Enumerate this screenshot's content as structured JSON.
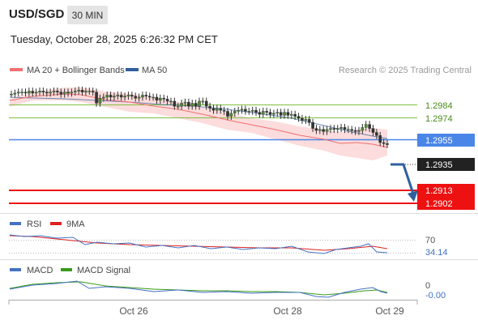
{
  "header": {
    "symbol": "USD/SGD",
    "timeframe": "30 MIN",
    "datetime": "Tuesday, October 28, 2025 6:26:32 PM CET"
  },
  "legend": {
    "ma20_label": "MA 20 + Bollinger Bands",
    "ma50_label": "MA 50",
    "copyright": "Research © 2025 Trading Central"
  },
  "colors": {
    "ma20": "#f07070",
    "ma50": "#2f5f9e",
    "bollinger_fill": "#fcdcdc",
    "resistance": "#7fbf40",
    "pivot": "#4a86e8",
    "support": "#ee1111",
    "current": "#222222",
    "candle": "#4f8f2f",
    "rsi": "#4472c4",
    "rsi_ma": "#dd2222",
    "macd": "#4472c4",
    "macd_signal": "#3a9a1a"
  },
  "price_levels": {
    "r2": "1.2984",
    "r1": "1.2974",
    "pivot": "1.2955",
    "current": "1.2935",
    "s1": "1.2913",
    "s2": "1.2902"
  },
  "rsi_legend": {
    "rsi": "RSI",
    "ma": "9MA"
  },
  "rsi_values": {
    "level": "70",
    "current": "34.14"
  },
  "macd_legend": {
    "macd": "MACD",
    "signal": "MACD Signal"
  },
  "macd_values": {
    "zero": "0",
    "current": "-0.00"
  },
  "x_axis": {
    "labels": [
      "Oct 26",
      "Oct 28",
      "Oct 29"
    ]
  },
  "chart_data": {
    "type": "candlestick",
    "instrument": "USD/SGD",
    "interval": "30 MIN",
    "x_categories": [
      "Oct 26",
      "Oct 28",
      "Oct 29"
    ],
    "series_close": [
      1.2997,
      1.2998,
      1.2999,
      1.2999,
      1.2998,
      1.3,
      1.2998,
      1.2999,
      1.3,
      1.2999,
      1.2998,
      1.2999,
      1.3,
      1.2999,
      1.2997,
      1.2999,
      1.2998,
      1.2999,
      1.3,
      1.3001,
      1.2999,
      1.3,
      1.3,
      1.2999,
      1.2988,
      1.2993,
      1.2994,
      1.2996,
      1.2994,
      1.2995,
      1.2996,
      1.2994,
      1.2995,
      1.2996,
      1.2995,
      1.2993,
      1.2994,
      1.2996,
      1.2995,
      1.2994,
      1.2994,
      1.2991,
      1.2993,
      1.2992,
      1.299,
      1.299,
      1.2985,
      1.2985,
      1.2988,
      1.2989,
      1.2985,
      1.2988,
      1.2985,
      1.299,
      1.299,
      1.2985,
      1.2983,
      1.2981,
      1.2983,
      1.2981,
      1.298,
      1.2975,
      1.2978,
      1.298,
      1.2981,
      1.2982,
      1.298,
      1.298,
      1.2981,
      1.2979,
      1.2977,
      1.298,
      1.2979,
      1.2977,
      1.2978,
      1.2979,
      1.2976,
      1.2979,
      1.2976,
      1.2977,
      1.2975,
      1.2973,
      1.2971,
      1.2972,
      1.2969,
      1.2963,
      1.2961,
      1.2962,
      1.296,
      1.2962,
      1.2963,
      1.2962,
      1.2963,
      1.2964,
      1.2962,
      1.2962,
      1.2961,
      1.296,
      1.2961,
      1.2964,
      1.2967,
      1.2963,
      1.2959,
      1.2956,
      1.2949,
      1.2948,
      1.2947
    ],
    "ma20_approx": [
      1.2997,
      1.3002,
      1.2997,
      1.2994,
      1.2991,
      1.2989,
      1.2985,
      1.2981,
      1.2978,
      1.2973,
      1.2966,
      1.2961,
      1.2955
    ],
    "ma50_approx": [
      1.2999,
      1.2998,
      1.2996,
      1.2994,
      1.2991,
      1.2989,
      1.2987,
      1.2984,
      1.2981,
      1.2977,
      1.2971,
      1.2965,
      1.296,
      1.2957
    ],
    "levels": {
      "resistance": [
        1.2984,
        1.2974
      ],
      "pivot": 1.2955,
      "current": 1.2935,
      "support": [
        1.2913,
        1.2902
      ]
    },
    "rsi": {
      "level": 70,
      "current": 34.14
    },
    "macd": {
      "zero": 0,
      "current": -0.0
    }
  }
}
